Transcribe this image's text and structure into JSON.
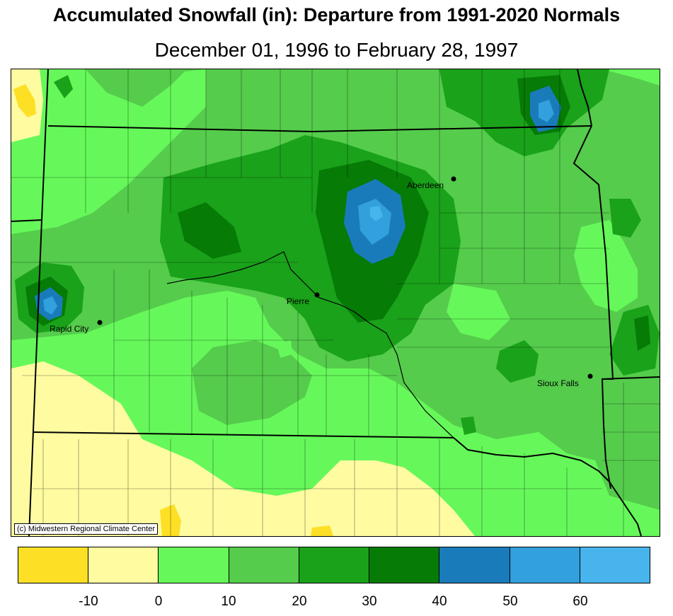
{
  "title": "Accumulated Snowfall (in): Departure from 1991-2020 Normals",
  "subtitle": "December 01, 1996 to February 28, 1997",
  "credit": "(c) Midwestern Regional Climate Center",
  "cities": [
    {
      "name": "Aberdeen",
      "label": "Aberdeen"
    },
    {
      "name": "Pierre",
      "label": "Pierre"
    },
    {
      "name": "Rapid City",
      "label": "Rapid City"
    },
    {
      "name": "Sioux Falls",
      "label": "Sioux Falls"
    }
  ],
  "legend": {
    "colors": [
      "#fde025",
      "#fefba0",
      "#66f85a",
      "#55cc4c",
      "#1aa21a",
      "#067b06",
      "#1a7bbb",
      "#32a0dd",
      "#48b4ee"
    ],
    "ticks": [
      "-10",
      "0",
      "10",
      "20",
      "30",
      "40",
      "50",
      "60"
    ]
  }
}
